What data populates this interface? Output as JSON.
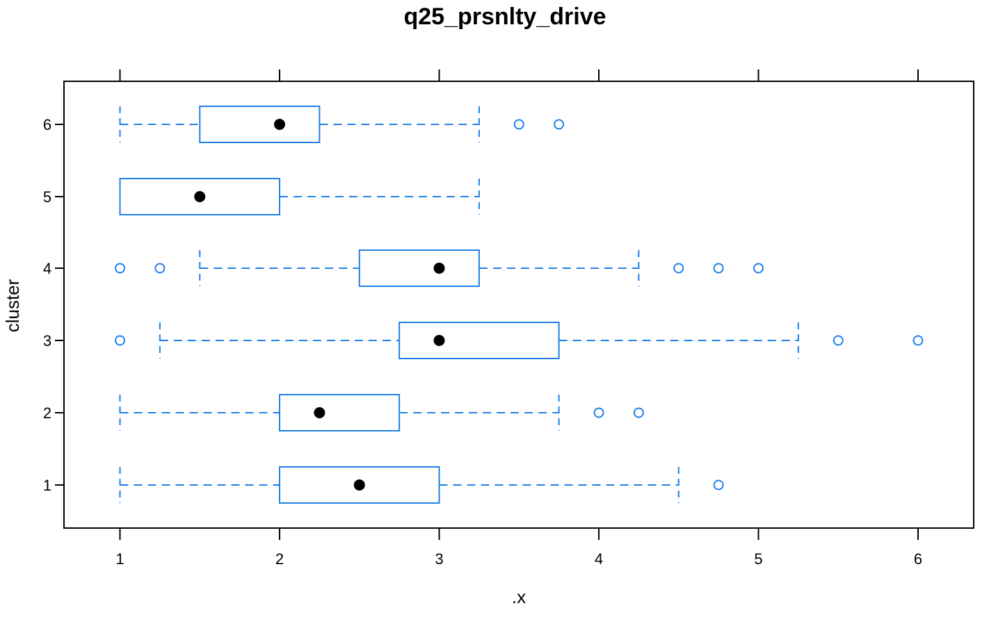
{
  "chart_data": {
    "type": "boxplot",
    "orientation": "horizontal",
    "title": "q25_prsnlty_drive",
    "xlabel": ".x",
    "ylabel": "cluster",
    "xlim": [
      0.65,
      6.35
    ],
    "x_ticks": [
      1,
      2,
      3,
      4,
      5,
      6
    ],
    "categories": [
      "1",
      "2",
      "3",
      "4",
      "5",
      "6"
    ],
    "colors": {
      "box": "#1f7fe8",
      "median": "#000000",
      "frame": "#000000"
    },
    "boxes": [
      {
        "cluster": "1",
        "whisker_low": 1.0,
        "q1": 2.0,
        "median": 2.5,
        "q3": 3.0,
        "whisker_high": 4.5,
        "outliers": [
          4.75
        ]
      },
      {
        "cluster": "2",
        "whisker_low": 1.0,
        "q1": 2.0,
        "median": 2.25,
        "q3": 2.75,
        "whisker_high": 3.75,
        "outliers": [
          4.0,
          4.25
        ]
      },
      {
        "cluster": "3",
        "whisker_low": 1.25,
        "q1": 2.75,
        "median": 3.0,
        "q3": 3.75,
        "whisker_high": 5.25,
        "outliers": [
          1.0,
          5.5,
          6.0
        ]
      },
      {
        "cluster": "4",
        "whisker_low": 1.5,
        "q1": 2.5,
        "median": 3.0,
        "q3": 3.25,
        "whisker_high": 4.25,
        "outliers": [
          1.0,
          1.25,
          4.5,
          4.75,
          5.0
        ]
      },
      {
        "cluster": "5",
        "whisker_low": 1.0,
        "q1": 1.0,
        "median": 1.5,
        "q3": 2.0,
        "whisker_high": 3.25,
        "outliers": []
      },
      {
        "cluster": "6",
        "whisker_low": 1.0,
        "q1": 1.5,
        "median": 2.0,
        "q3": 2.25,
        "whisker_high": 3.25,
        "outliers": [
          3.5,
          3.75
        ]
      }
    ]
  }
}
